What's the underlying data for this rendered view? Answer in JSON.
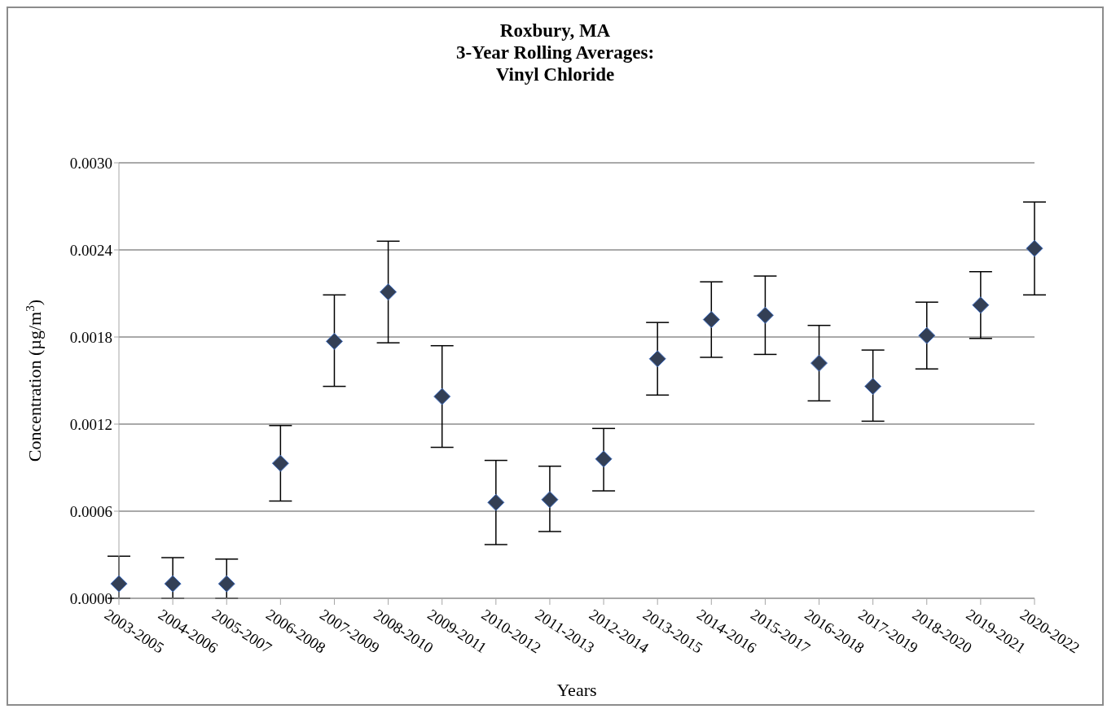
{
  "chart_data": {
    "type": "scatter",
    "title": "Roxbury, MA\n3-Year Rolling Averages:\nVinyl Chloride",
    "xlabel": "Years",
    "ylabel": "Concentration (µg/m$^{3}$)",
    "categories": [
      "2003-2005",
      "2004-2006",
      "2005-2007",
      "2006-2008",
      "2007-2009",
      "2008-2010",
      "2009-2011",
      "2010-2012",
      "2011-2013",
      "2012-2014",
      "2013-2015",
      "2014-2016",
      "2015-2017",
      "2016-2018",
      "2017-2019",
      "2018-2020",
      "2019-2021",
      "2020-2022"
    ],
    "series": [
      {
        "color": "#333f55",
        "values": [
          0.0001,
          0.0001,
          0.0001,
          0.00093,
          0.00177,
          0.00211,
          0.00139,
          0.00066,
          0.00068,
          0.00096,
          0.00165,
          0.00192,
          0.00195,
          0.00162,
          0.00146,
          0.00181,
          0.00202,
          0.00241
        ],
        "errors": [
          [
            0,
            0.00029
          ],
          [
            0,
            0.00028
          ],
          [
            0,
            0.00027
          ],
          [
            0.00067,
            0.00119
          ],
          [
            0.00146,
            0.00209
          ],
          [
            0.00176,
            0.00246
          ],
          [
            0.00104,
            0.00174
          ],
          [
            0.00037,
            0.00095
          ],
          [
            0.00046,
            0.00091
          ],
          [
            0.00074,
            0.00117
          ],
          [
            0.0014,
            0.0019
          ],
          [
            0.00166,
            0.00218
          ],
          [
            0.00168,
            0.00222
          ],
          [
            0.00136,
            0.00188
          ],
          [
            0.00122,
            0.00171
          ],
          [
            0.00158,
            0.00204
          ],
          [
            0.00179,
            0.00225
          ],
          [
            0.00209,
            0.00273
          ]
        ]
      }
    ],
    "ylim": [
      0,
      0.003
    ],
    "yticks": [
      {
        "value": 0,
        "label": "0.0000"
      },
      {
        "value": 0.0006,
        "label": "0.0006"
      },
      {
        "value": 0.0012,
        "label": "0.0012"
      },
      {
        "value": 0.0018,
        "label": "0.0018"
      },
      {
        "value": 0.0024,
        "label": "0.0024"
      },
      {
        "value": 0.003,
        "label": "0.0030"
      }
    ],
    "grid": "y",
    "marker": "diamond",
    "legend": false
  }
}
